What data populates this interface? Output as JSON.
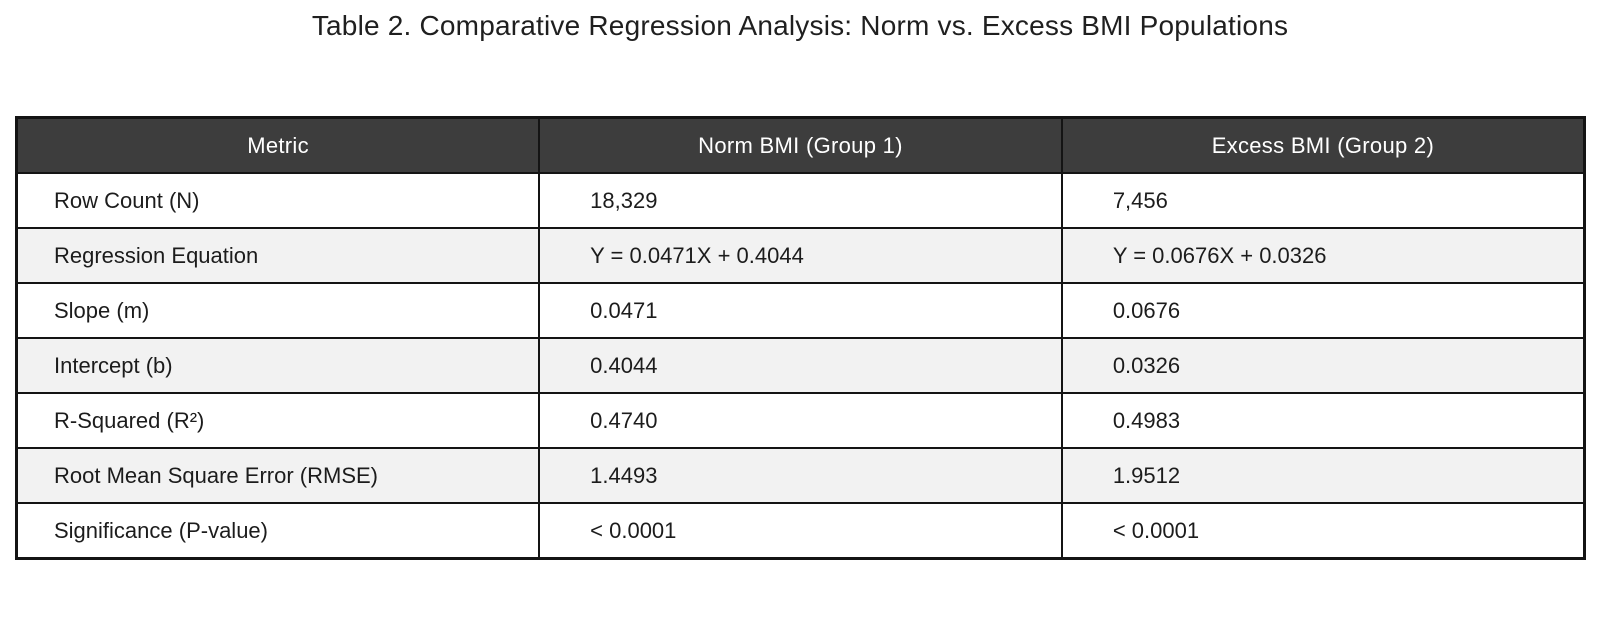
{
  "title": "Table 2. Comparative Regression Analysis: Norm vs. Excess BMI Populations",
  "table": {
    "headers": [
      "Metric",
      "Norm BMI (Group 1)",
      "Excess BMI (Group 2)"
    ],
    "rows": [
      {
        "metric": "Row Count (N)",
        "group1": "18,329",
        "group2": "7,456"
      },
      {
        "metric": "Regression Equation",
        "group1": "Y = 0.0471X + 0.4044",
        "group2": "Y = 0.0676X + 0.0326"
      },
      {
        "metric": "Slope (m)",
        "group1": "0.0471",
        "group2": "0.0676"
      },
      {
        "metric": "Intercept (b)",
        "group1": "0.4044",
        "group2": "0.0326"
      },
      {
        "metric": "R-Squared (R²)",
        "group1": "0.4740",
        "group2": "0.4983"
      },
      {
        "metric": "Root Mean Square Error (RMSE)",
        "group1": "1.4493",
        "group2": "1.9512"
      },
      {
        "metric": "Significance (P-value)",
        "group1": "< 0.0001",
        "group2": "< 0.0001"
      }
    ]
  },
  "colors": {
    "header_bg": "#3d3d3d",
    "header_text": "#ffffff",
    "stripe_bg": "#f2f2f2",
    "border": "#141414",
    "body_text": "#1c1c1c",
    "title_text": "#1f1f1f",
    "page_bg": "#ffffff"
  }
}
